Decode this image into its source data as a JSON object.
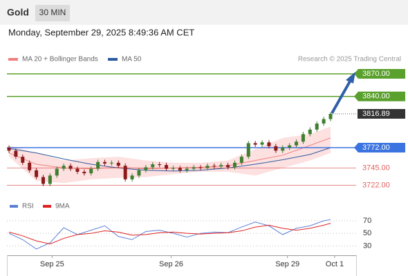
{
  "header": {
    "title": "Gold",
    "interval": "30 MIN",
    "timestamp": "Monday, September 29, 2025 8:49:36 AM CET",
    "credit": "Research © 2025 Trading Central"
  },
  "chart_data": [
    {
      "type": "candlestick",
      "xlim": [
        0,
        47
      ],
      "ylim": [
        3707,
        3881
      ],
      "up_color": "#3f7f2f",
      "down_color": "#8b1a1a",
      "open": [
        3772,
        3768,
        3760,
        3752,
        3742,
        3733,
        3724,
        3735,
        3744,
        3748,
        3744,
        3740,
        3738,
        3744,
        3753,
        3751,
        3752,
        3748,
        3730,
        3735,
        3742,
        3746,
        3750,
        3749,
        3744,
        3745,
        3742,
        3744,
        3746,
        3745,
        3748,
        3747,
        3749,
        3746,
        3752,
        3760,
        3778,
        3776,
        3779,
        3774,
        3768,
        3772,
        3775,
        3780,
        3790,
        3796,
        3804,
        3810
      ],
      "high": [
        3775,
        3771,
        3763,
        3755,
        3745,
        3736,
        3738,
        3747,
        3751,
        3751,
        3747,
        3743,
        3747,
        3756,
        3756,
        3755,
        3755,
        3751,
        3738,
        3745,
        3749,
        3753,
        3753,
        3752,
        3748,
        3748,
        3747,
        3749,
        3749,
        3751,
        3751,
        3752,
        3752,
        3755,
        3763,
        3781,
        3781,
        3782,
        3782,
        3777,
        3775,
        3778,
        3783,
        3793,
        3799,
        3807,
        3813,
        3819
      ],
      "low": [
        3765,
        3757,
        3749,
        3739,
        3730,
        3721,
        3721,
        3732,
        3741,
        3741,
        3737,
        3735,
        3735,
        3741,
        3748,
        3748,
        3745,
        3727,
        3727,
        3732,
        3739,
        3743,
        3746,
        3741,
        3741,
        3739,
        3739,
        3741,
        3742,
        3742,
        3744,
        3744,
        3743,
        3743,
        3749,
        3757,
        3773,
        3773,
        3771,
        3765,
        3765,
        3769,
        3772,
        3777,
        3787,
        3793,
        3801,
        3807
      ],
      "close": [
        3768,
        3760,
        3752,
        3742,
        3733,
        3724,
        3735,
        3744,
        3748,
        3744,
        3740,
        3738,
        3744,
        3753,
        3751,
        3752,
        3748,
        3730,
        3735,
        3742,
        3746,
        3750,
        3749,
        3744,
        3745,
        3742,
        3744,
        3746,
        3745,
        3748,
        3747,
        3749,
        3746,
        3752,
        3760,
        3778,
        3776,
        3779,
        3774,
        3768,
        3772,
        3775,
        3780,
        3790,
        3796,
        3804,
        3810,
        3816.89
      ],
      "overlay_x": [
        0,
        4,
        8,
        12,
        16,
        20,
        24,
        28,
        32,
        36,
        40,
        44,
        47
      ],
      "series": [
        {
          "name": "MA 20 + Bollinger Bands",
          "color": "#f08080",
          "band_color": "#fde0e0",
          "values": [
            3765,
            3750,
            3745,
            3744,
            3746,
            3744,
            3745,
            3746,
            3748,
            3755,
            3762,
            3775,
            3785
          ],
          "upper": [
            3775,
            3765,
            3755,
            3758,
            3760,
            3755,
            3752,
            3752,
            3755,
            3770,
            3785,
            3790,
            3800
          ],
          "lower": [
            3760,
            3728,
            3725,
            3730,
            3732,
            3733,
            3737,
            3740,
            3740,
            3735,
            3745,
            3755,
            3765
          ]
        },
        {
          "name": "MA 50",
          "color": "#2c5aa0",
          "values": [
            3771,
            3765,
            3757,
            3750,
            3745,
            3742,
            3741,
            3742,
            3745,
            3750,
            3756,
            3763,
            3772
          ]
        }
      ],
      "levels": [
        {
          "value": 3870,
          "label": "3870.00",
          "color": "#5aa02c",
          "style": "box"
        },
        {
          "value": 3840,
          "label": "3840.00",
          "color": "#5aa02c",
          "style": "box"
        },
        {
          "value": 3816.89,
          "color": "#333333",
          "style": "dotted"
        },
        {
          "value": 3772,
          "label": "3772.00",
          "color": "#3b73e0",
          "style": "box"
        },
        {
          "value": 3745,
          "label": "3745.00",
          "color": "#e06060",
          "style": "text"
        },
        {
          "value": 3722,
          "label": "3722.00",
          "color": "#e06060",
          "style": "text"
        }
      ]
    },
    {
      "type": "line",
      "xlim": [
        0,
        47
      ],
      "ylim": [
        15,
        81
      ],
      "yticks": [
        70,
        50,
        30
      ],
      "x": [
        0,
        2,
        4,
        6,
        8,
        10,
        12,
        14,
        16,
        18,
        20,
        22,
        24,
        26,
        28,
        30,
        32,
        34,
        36,
        38,
        40,
        42,
        44,
        46,
        47
      ],
      "series": [
        {
          "name": "RSI",
          "color": "#5b7fd6",
          "values": [
            50,
            40,
            25,
            35,
            59,
            48,
            55,
            62,
            45,
            40,
            53,
            55,
            50,
            44,
            50,
            52,
            51,
            60,
            68,
            62,
            48,
            58,
            62,
            70,
            72
          ]
        },
        {
          "name": "9MA",
          "color": "#e02020",
          "values": [
            52,
            46,
            38,
            33,
            42,
            48,
            50,
            54,
            52,
            47,
            48,
            51,
            52,
            50,
            49,
            50,
            51,
            54,
            60,
            63,
            58,
            55,
            58,
            63,
            66
          ]
        }
      ],
      "xticks": [
        {
          "value": 6.3,
          "label": "Sep 25"
        },
        {
          "value": 23.7,
          "label": "Sep 26"
        },
        {
          "value": 40.7,
          "label": "Sep 29"
        },
        {
          "value": 47.6,
          "label": "Oct 1"
        }
      ]
    }
  ]
}
